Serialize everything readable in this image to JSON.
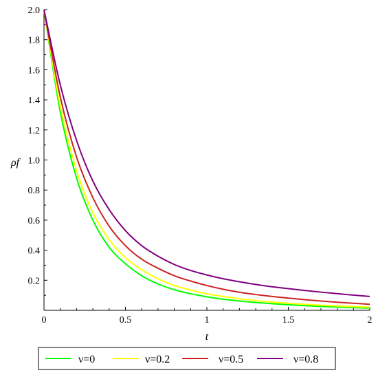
{
  "chart_data": {
    "type": "line",
    "xlabel": "t",
    "ylabel": "ρf",
    "xlim": [
      0,
      2
    ],
    "ylim": [
      0,
      2.0
    ],
    "xticks": [
      {
        "value": 0,
        "label": "0"
      },
      {
        "value": 0.5,
        "label": "0.5"
      },
      {
        "value": 1,
        "label": "1"
      },
      {
        "value": 1.5,
        "label": "1.5"
      },
      {
        "value": 2,
        "label": "2"
      }
    ],
    "yticks": [
      {
        "value": 0.2,
        "label": "0.2"
      },
      {
        "value": 0.4,
        "label": "0.4"
      },
      {
        "value": 0.6,
        "label": "0.6"
      },
      {
        "value": 0.8,
        "label": "0.8"
      },
      {
        "value": 1.0,
        "label": "1.0"
      },
      {
        "value": 1.2,
        "label": "1.2"
      },
      {
        "value": 1.4,
        "label": "1.4"
      },
      {
        "value": 1.6,
        "label": "1.6"
      },
      {
        "value": 1.8,
        "label": "1.8"
      },
      {
        "value": 2.0,
        "label": "2.0"
      }
    ],
    "grid": false,
    "legend_position": "bottom",
    "x": [
      0,
      0.1,
      0.2,
      0.3,
      0.4,
      0.5,
      0.6,
      0.7,
      0.8,
      0.9,
      1.0,
      1.1,
      1.2,
      1.3,
      1.4,
      1.5,
      1.6,
      1.7,
      1.8,
      1.9,
      2.0
    ],
    "series": [
      {
        "name": "ν=0",
        "color": "#00ff00",
        "values": [
          2.0,
          1.32,
          0.88,
          0.6,
          0.42,
          0.31,
          0.23,
          0.175,
          0.137,
          0.11,
          0.09,
          0.074,
          0.062,
          0.052,
          0.044,
          0.037,
          0.031,
          0.026,
          0.022,
          0.018,
          0.015
        ]
      },
      {
        "name": "ν=0.2",
        "color": "#ffff00",
        "values": [
          2.0,
          1.36,
          0.93,
          0.65,
          0.47,
          0.35,
          0.27,
          0.21,
          0.165,
          0.135,
          0.11,
          0.092,
          0.077,
          0.065,
          0.055,
          0.047,
          0.04,
          0.034,
          0.029,
          0.025,
          0.021
        ]
      },
      {
        "name": "ν=0.5",
        "color": "#cc2222",
        "values": [
          2.0,
          1.42,
          1.02,
          0.75,
          0.56,
          0.43,
          0.34,
          0.28,
          0.23,
          0.195,
          0.165,
          0.14,
          0.12,
          0.105,
          0.092,
          0.081,
          0.071,
          0.062,
          0.054,
          0.047,
          0.04
        ]
      },
      {
        "name": "ν=0.8",
        "color": "#800080",
        "values": [
          2.0,
          1.5,
          1.13,
          0.86,
          0.67,
          0.53,
          0.43,
          0.36,
          0.305,
          0.265,
          0.235,
          0.21,
          0.19,
          0.172,
          0.157,
          0.144,
          0.132,
          0.121,
          0.111,
          0.101,
          0.092
        ]
      }
    ]
  }
}
